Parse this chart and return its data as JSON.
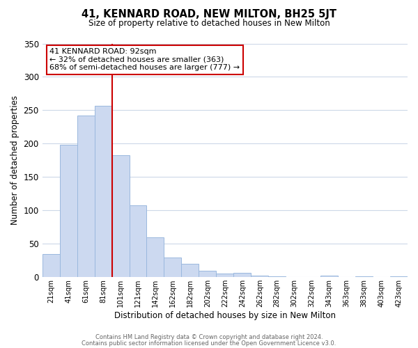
{
  "title": "41, KENNARD ROAD, NEW MILTON, BH25 5JT",
  "subtitle": "Size of property relative to detached houses in New Milton",
  "xlabel": "Distribution of detached houses by size in New Milton",
  "ylabel": "Number of detached properties",
  "bar_color": "#ccd9f0",
  "bar_edge_color": "#9ab8de",
  "categories": [
    "21sqm",
    "41sqm",
    "61sqm",
    "81sqm",
    "101sqm",
    "121sqm",
    "142sqm",
    "162sqm",
    "182sqm",
    "202sqm",
    "222sqm",
    "242sqm",
    "262sqm",
    "282sqm",
    "302sqm",
    "322sqm",
    "343sqm",
    "363sqm",
    "383sqm",
    "403sqm",
    "423sqm"
  ],
  "values": [
    35,
    198,
    242,
    257,
    183,
    108,
    60,
    30,
    20,
    10,
    6,
    7,
    2,
    1,
    0,
    0,
    2,
    0,
    1,
    0,
    1
  ],
  "ylim": [
    0,
    350
  ],
  "yticks": [
    0,
    50,
    100,
    150,
    200,
    250,
    300,
    350
  ],
  "vline_color": "#cc0000",
  "annotation_title": "41 KENNARD ROAD: 92sqm",
  "annotation_line1": "← 32% of detached houses are smaller (363)",
  "annotation_line2": "68% of semi-detached houses are larger (777) →",
  "annotation_box_color": "#ffffff",
  "annotation_box_edge": "#cc0000",
  "footer1": "Contains HM Land Registry data © Crown copyright and database right 2024.",
  "footer2": "Contains public sector information licensed under the Open Government Licence v3.0.",
  "background_color": "#ffffff",
  "grid_color": "#ccd8e8"
}
